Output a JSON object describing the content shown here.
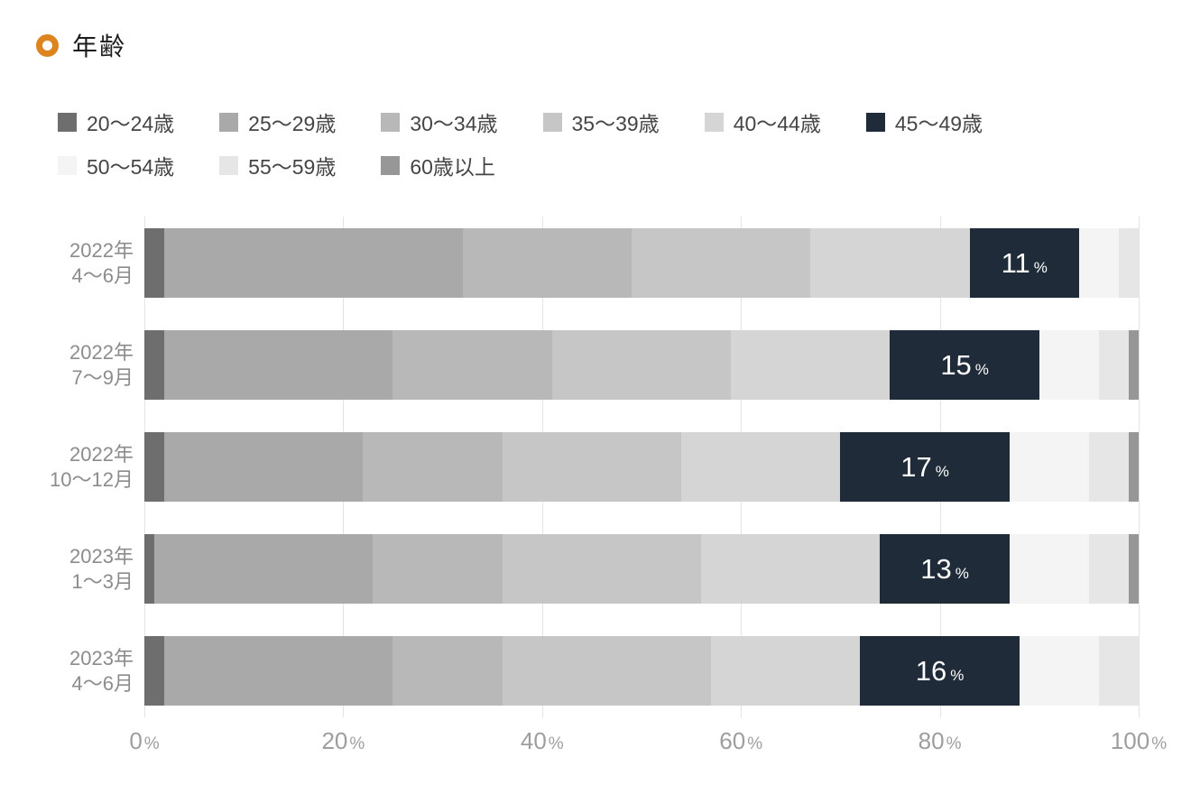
{
  "header": {
    "title": "年齢",
    "bullet_color": "#dd841f"
  },
  "colors": {
    "grid": "#e4e4e4",
    "axis_text": "#9e9e9e",
    "category_text": "#8c8c8c",
    "legend_text": "#454545",
    "bar_label_text": "#ffffff"
  },
  "chart_data": {
    "type": "bar",
    "variant": "horizontal-stacked",
    "title": "年齢",
    "unit": "%",
    "xlim": [
      0,
      100
    ],
    "x_ticks": [
      0,
      20,
      40,
      60,
      80,
      100
    ],
    "grid": true,
    "legend_position": "top",
    "categories": [
      {
        "line1": "2022年",
        "line2": "4〜6月"
      },
      {
        "line1": "2022年",
        "line2": "7〜9月"
      },
      {
        "line1": "2022年",
        "line2": "10〜12月"
      },
      {
        "line1": "2023年",
        "line2": "1〜3月"
      },
      {
        "line1": "2023年",
        "line2": "4〜6月"
      }
    ],
    "series": [
      {
        "name": "20〜24歳",
        "color": "#6e6e6e",
        "label_inside": false,
        "values": [
          2,
          2,
          2,
          1,
          2
        ]
      },
      {
        "name": "25〜29歳",
        "color": "#a9a9a9",
        "label_inside": false,
        "values": [
          30,
          23,
          20,
          22,
          23
        ]
      },
      {
        "name": "30〜34歳",
        "color": "#b8b8b8",
        "label_inside": false,
        "values": [
          17,
          16,
          14,
          13,
          11
        ]
      },
      {
        "name": "35〜39歳",
        "color": "#c6c6c6",
        "label_inside": false,
        "values": [
          18,
          18,
          18,
          20,
          21
        ]
      },
      {
        "name": "40〜44歳",
        "color": "#d5d5d5",
        "label_inside": false,
        "values": [
          16,
          16,
          16,
          18,
          15
        ]
      },
      {
        "name": "45〜49歳",
        "color": "#1f2b39",
        "label_inside": true,
        "values": [
          11,
          15,
          17,
          13,
          16
        ]
      },
      {
        "name": "50〜54歳",
        "color": "#f4f4f4",
        "label_inside": false,
        "values": [
          4,
          6,
          8,
          8,
          8
        ]
      },
      {
        "name": "55〜59歳",
        "color": "#e6e6e6",
        "label_inside": false,
        "values": [
          2,
          3,
          4,
          4,
          4
        ]
      },
      {
        "name": "60歳以上",
        "color": "#979797",
        "label_inside": false,
        "values": [
          0,
          1,
          1,
          1,
          0
        ]
      }
    ]
  }
}
